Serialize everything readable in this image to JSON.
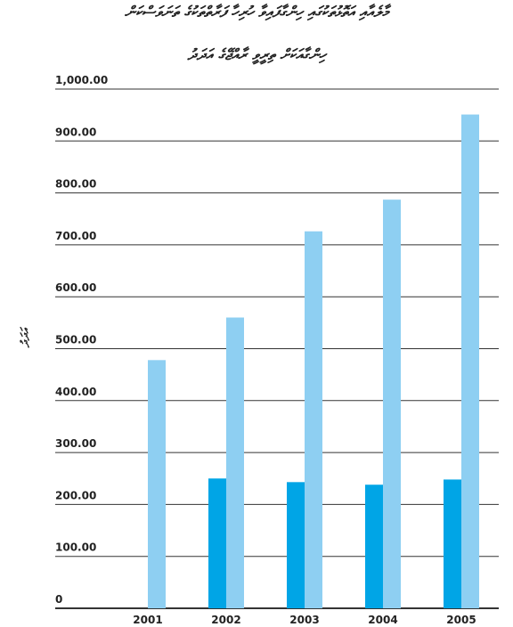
{
  "title_line1": "މާލެއާއި އަތޮޅުތަކުގައި ހިންގާފައިވާ ހުރިހާ ފަރާތްތަކުގެ ތަނަވަސްކަން",
  "title_line2": "ހިންގާއަކަށް ތިރީވީ ރާއްޖޭގެ އަދަދު",
  "ylabel": "އަދަދު",
  "colors": {
    "series_dark": "#00A5E6",
    "series_light": "#8ECFF2",
    "grid": "#333333"
  },
  "chart_data": {
    "type": "bar",
    "categories": [
      "2001",
      "2002",
      "2003",
      "2004",
      "2005"
    ],
    "series": [
      {
        "values": [
          0,
          250,
          243,
          238,
          248
        ]
      },
      {
        "values": [
          478,
          560,
          726,
          787,
          951
        ]
      }
    ],
    "ylim": [
      0,
      1000
    ],
    "yticks": [
      0,
      100,
      200,
      300,
      400,
      500,
      600,
      700,
      800,
      900,
      1000
    ],
    "ytick_labels": [
      "0",
      "100.00",
      "200.00",
      "300.00",
      "400.00",
      "500.00",
      "600.00",
      "700.00",
      "800.00",
      "900.00",
      "1,000.00"
    ],
    "grid": true,
    "legend": "none"
  }
}
